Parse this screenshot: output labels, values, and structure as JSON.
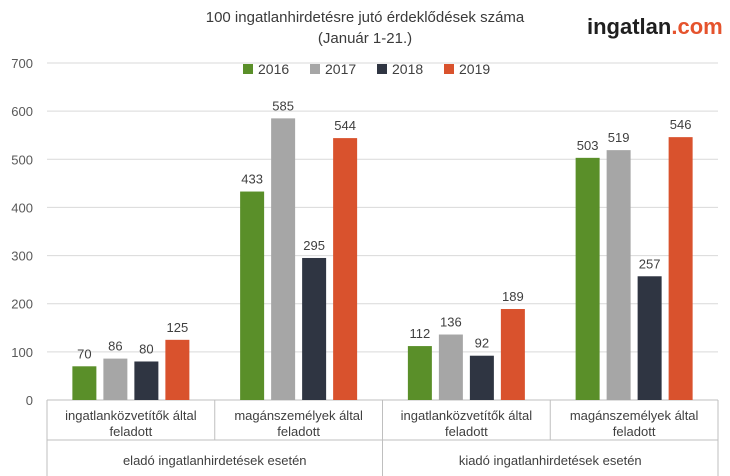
{
  "brand": {
    "main": "ingatlan",
    "tld": ".com",
    "tld_color": "#e5532d"
  },
  "chart_data": {
    "type": "bar",
    "title": "100 ingatlanhirdetésre jutó érdeklődések száma",
    "subtitle": "(Január 1-21.)",
    "ylim": [
      0,
      700
    ],
    "yticks": [
      0,
      100,
      200,
      300,
      400,
      500,
      600,
      700
    ],
    "grid": true,
    "legend_position": "top-center",
    "groups": [
      {
        "label": "eladó ingatlanhirdetések esetén",
        "categories": [
          0,
          1
        ]
      },
      {
        "label": "kiadó ingatlanhirdetések esetén",
        "categories": [
          2,
          3
        ]
      }
    ],
    "categories": [
      [
        "ingatlanközvetítők által",
        "feladott"
      ],
      [
        "magánszemélyek által",
        "feladott"
      ],
      [
        "ingatlanközvetítők által",
        "feladott"
      ],
      [
        "magánszemélyek által",
        "feladott"
      ]
    ],
    "series": [
      {
        "name": "2016",
        "color": "#5a8f29",
        "values": [
          70,
          433,
          112,
          503
        ]
      },
      {
        "name": "2017",
        "color": "#a6a6a6",
        "values": [
          86,
          585,
          136,
          519
        ]
      },
      {
        "name": "2018",
        "color": "#2f3542",
        "values": [
          80,
          295,
          92,
          257
        ]
      },
      {
        "name": "2019",
        "color": "#d9522d",
        "values": [
          125,
          544,
          189,
          546
        ]
      }
    ]
  }
}
